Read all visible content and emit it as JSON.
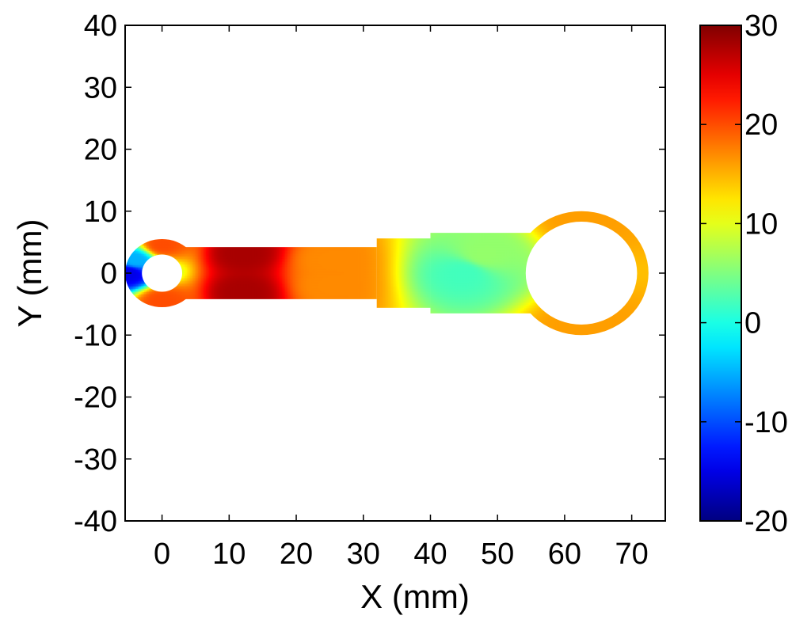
{
  "chart_data": {
    "type": "heatmap",
    "title": "",
    "xlabel": "X (mm)",
    "ylabel": "Y (mm)",
    "xlim": [
      -5.5,
      75
    ],
    "ylim": [
      -40,
      40
    ],
    "xticks": [
      0,
      10,
      20,
      30,
      40,
      50,
      60,
      70
    ],
    "yticks": [
      -40,
      -30,
      -20,
      -10,
      0,
      10,
      20,
      30,
      40
    ],
    "colorbar": {
      "range": [
        -20,
        30
      ],
      "ticks": [
        -20,
        -10,
        0,
        10,
        20,
        30
      ],
      "colormap": "jet"
    },
    "grid": false,
    "shape": {
      "small_end": {
        "center": [
          0,
          0
        ],
        "outer_radius": 5.5,
        "inner_radius": 3
      },
      "large_end": {
        "center": [
          62.5,
          0
        ],
        "outer_radius": 10,
        "inner_radius": 8.3
      },
      "shank": [
        {
          "x_from": 3.5,
          "x_to": 32,
          "half_height": 4.2
        },
        {
          "x_from": 32,
          "x_to": 40,
          "half_height": 5.6
        },
        {
          "x_from": 40,
          "x_to": 55,
          "half_height": 6.5
        }
      ]
    },
    "field_samples": [
      {
        "x": -5,
        "y": 0,
        "value": -15
      },
      {
        "x": -4,
        "y": 2,
        "value": -5
      },
      {
        "x": 0,
        "y": 4.5,
        "value": 20
      },
      {
        "x": 0,
        "y": -4.5,
        "value": 20
      },
      {
        "x": 12,
        "y": 3.2,
        "value": 28
      },
      {
        "x": 12,
        "y": -3.2,
        "value": 28
      },
      {
        "x": 25,
        "y": 2,
        "value": 17
      },
      {
        "x": 25,
        "y": -2,
        "value": 17
      },
      {
        "x": 45,
        "y": 0,
        "value": 2
      },
      {
        "x": 48,
        "y": 3,
        "value": 6
      },
      {
        "x": 62.5,
        "y": 9,
        "value": 16
      },
      {
        "x": 62.5,
        "y": -9,
        "value": 16
      }
    ]
  }
}
